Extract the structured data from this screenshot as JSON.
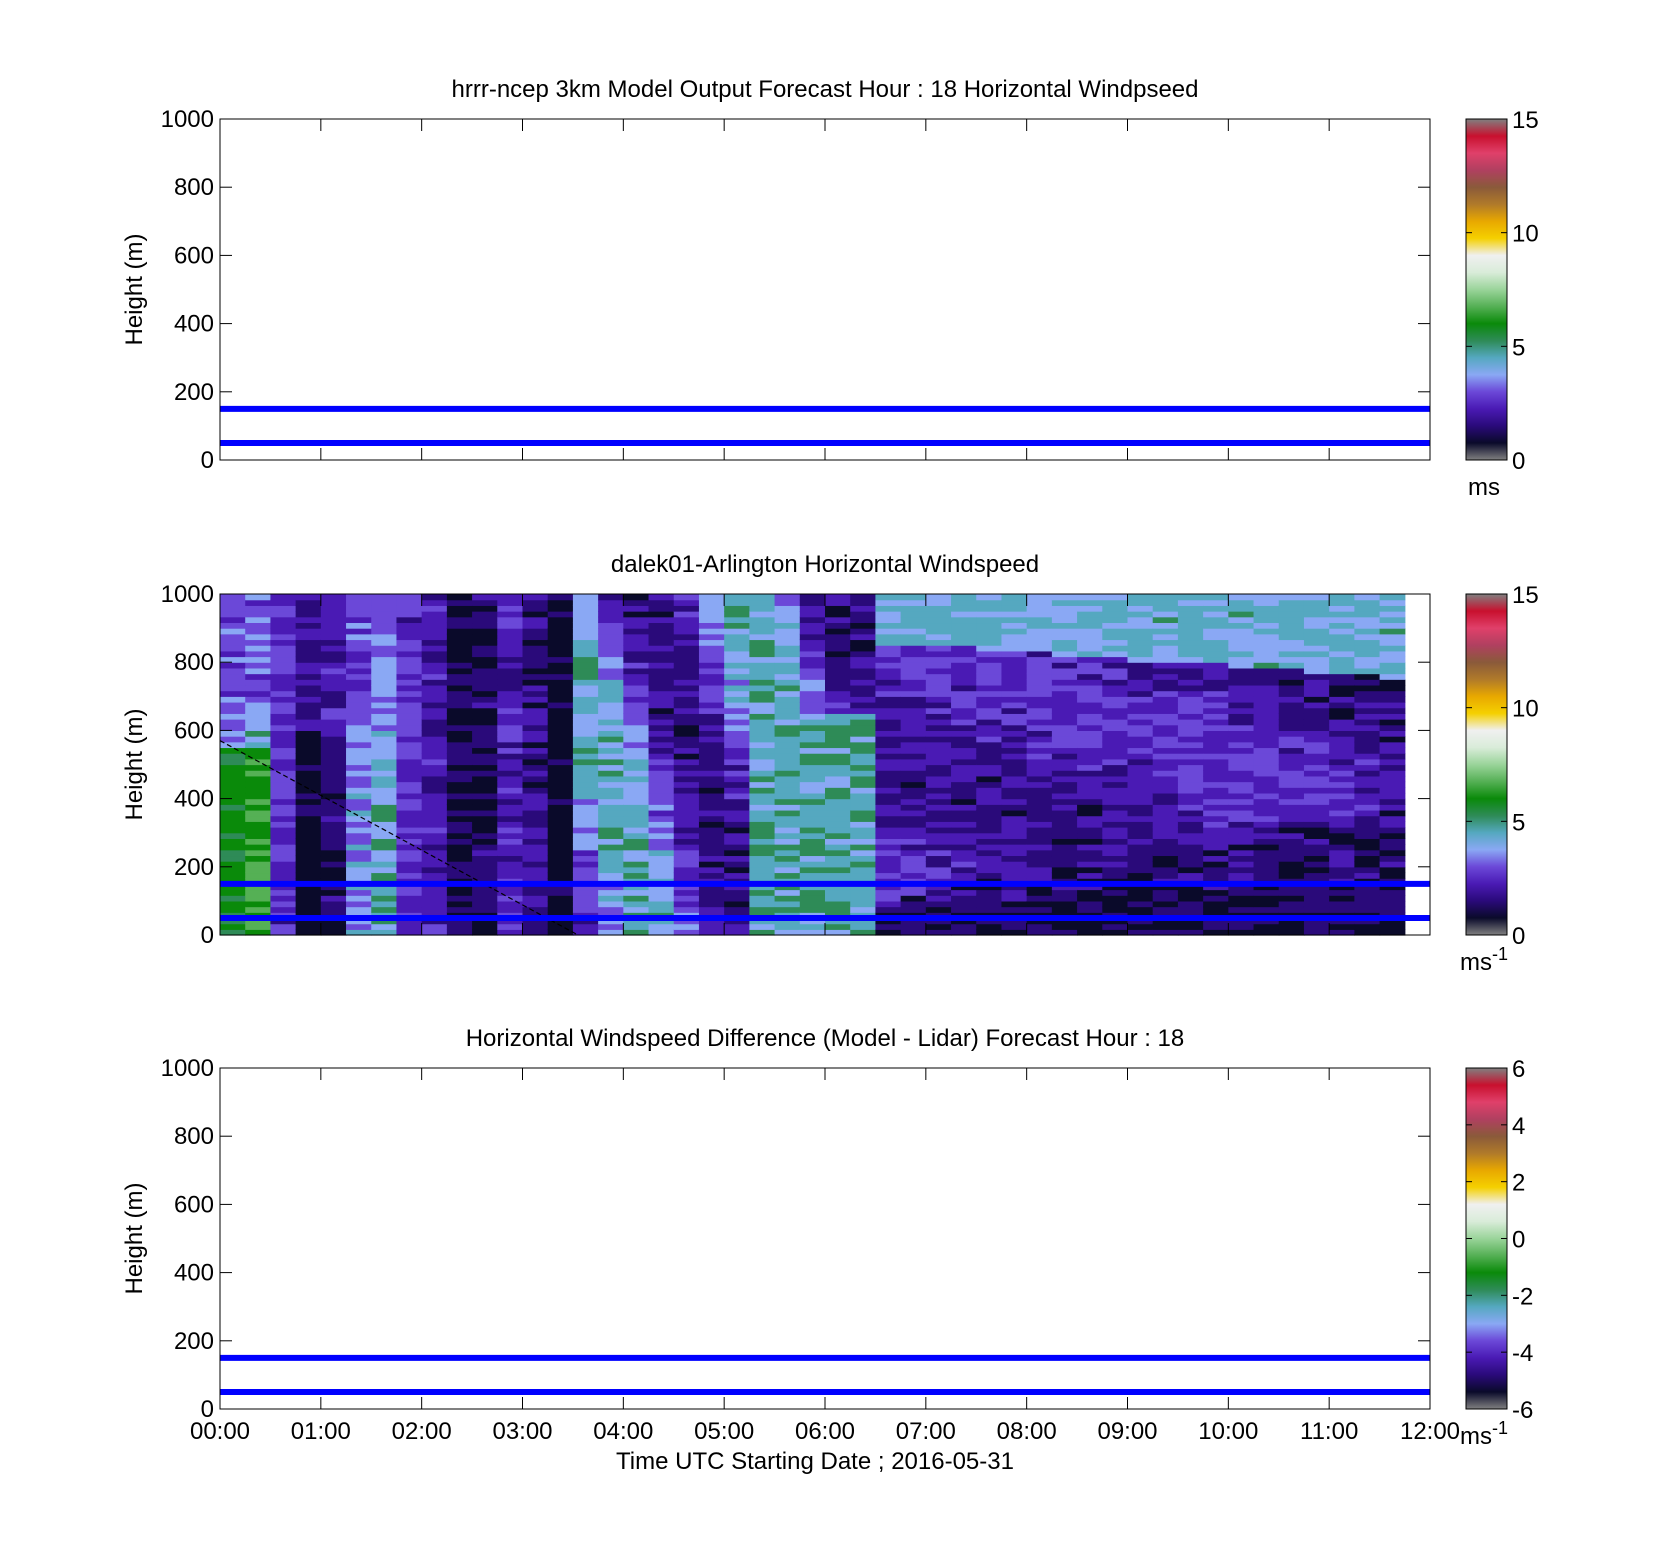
{
  "chart_data": [
    {
      "type": "heatmap",
      "title": "hrrr-ncep 3km Model Output   Forecast Hour : 18 Horizontal Windpseed",
      "ylabel": "Height (m)",
      "xlabel": "",
      "ylim": [
        0,
        1000
      ],
      "yticks": [
        "0",
        "200",
        "400",
        "600",
        "800",
        "1000"
      ],
      "xlim_hours": [
        0,
        12
      ],
      "reference_lines_m": [
        50,
        150
      ],
      "has_data": false,
      "colorbar": {
        "min": 0,
        "max": 15,
        "ticks": [
          "0",
          "5",
          "10",
          "15"
        ],
        "unit": "ms",
        "unit_exp": "",
        "palette": "speed"
      }
    },
    {
      "type": "heatmap",
      "title": "dalek01-Arlington  Horizontal Windspeed",
      "ylabel": "Height (m)",
      "xlabel": "",
      "ylim": [
        0,
        1000
      ],
      "yticks": [
        "0",
        "200",
        "400",
        "600",
        "800",
        "1000"
      ],
      "xlim_hours": [
        0,
        12
      ],
      "data_extent_hours": [
        0,
        11.85
      ],
      "reference_lines_m": [
        50,
        150
      ],
      "has_data": true,
      "overlap_line": {
        "from": [
          0,
          570
        ],
        "to": [
          3.55,
          0
        ]
      },
      "colorbar": {
        "min": 0,
        "max": 15,
        "ticks": [
          "0",
          "5",
          "10",
          "15"
        ],
        "unit": "ms",
        "unit_exp": "-1",
        "palette": "speed"
      }
    },
    {
      "type": "heatmap",
      "title": "Horizontal Windspeed Difference (Model - Lidar) Forecast Hour : 18",
      "ylabel": "Height (m)",
      "xlabel": "Time UTC  Starting Date ; 2016-05-31",
      "ylim": [
        0,
        1000
      ],
      "yticks": [
        "0",
        "200",
        "400",
        "600",
        "800",
        "1000"
      ],
      "xticks": [
        "00:00",
        "01:00",
        "02:00",
        "03:00",
        "04:00",
        "05:00",
        "06:00",
        "07:00",
        "08:00",
        "09:00",
        "10:00",
        "11:00",
        "12:00"
      ],
      "xlim_hours": [
        0,
        12
      ],
      "reference_lines_m": [
        50,
        150
      ],
      "has_data": false,
      "colorbar": {
        "min": -6,
        "max": 6,
        "ticks": [
          "-6",
          "-4",
          "-2",
          "0",
          "2",
          "4",
          "6"
        ],
        "unit": "ms",
        "unit_exp": "-1",
        "palette": "diff"
      }
    }
  ],
  "colors": {
    "reference_line": "#0000ff",
    "overlap_line": "#000000",
    "speed_palette": [
      "#808080",
      "#0a0a2a",
      "#2a0a7a",
      "#4a1ab4",
      "#6b48d8",
      "#8aa8f4",
      "#55a8c0",
      "#2e8b57",
      "#0a8a0a",
      "#55b055",
      "#9ad49a",
      "#d9ecd9",
      "#f0f0f0",
      "#f5d000",
      "#e8a800",
      "#b07a2a",
      "#8a5a3a",
      "#b04060",
      "#e0406a",
      "#c8102e",
      "#808080"
    ],
    "diff_palette": [
      "#808080",
      "#0a0a2a",
      "#2a0a7a",
      "#4a1ab4",
      "#6b48d8",
      "#8aa8f4",
      "#55a8c0",
      "#2e8b57",
      "#0a8a0a",
      "#55b055",
      "#9ad49a",
      "#d9ecd9",
      "#f0f0f0",
      "#f5d000",
      "#e8a800",
      "#b07a2a",
      "#8a5a3a",
      "#b04060",
      "#e0406a",
      "#c8102e",
      "#808080"
    ]
  }
}
